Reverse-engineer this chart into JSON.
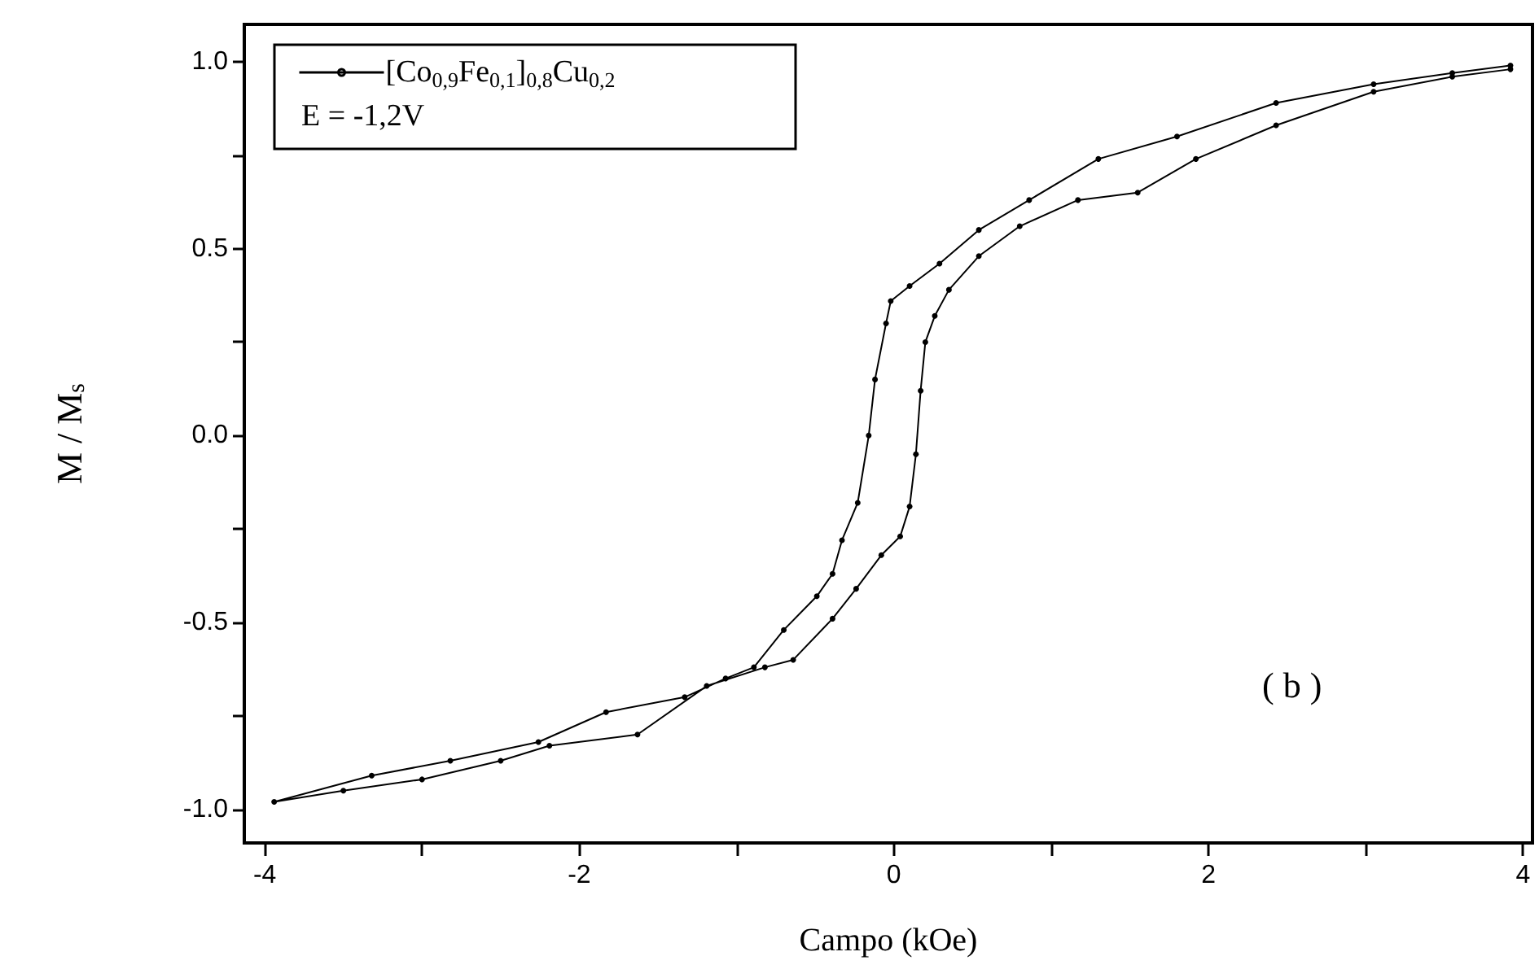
{
  "chart_data": {
    "type": "line",
    "xlabel": "Campo (kOe)",
    "ylabel": "M / M$_{s}$",
    "annotations": [
      "E = -1,2V",
      "( b )"
    ],
    "series": [
      {
        "name": "[Co$_{0,9}$Fe$_{0,1}$]$_{0,8}$Cu$_{0,2}$",
        "color": "#000000",
        "x": [
          3.92,
          3.55,
          3.05,
          2.43,
          1.8,
          1.3,
          0.86,
          0.54,
          0.29,
          0.1,
          -0.02,
          -0.05,
          -0.12,
          -0.16,
          -0.23,
          -0.33,
          -0.39,
          -0.49,
          -0.7,
          -0.89,
          -1.07,
          -1.33,
          -1.83,
          -2.26,
          -2.82,
          -3.32,
          -3.94,
          -3.5,
          -3.0,
          -2.5,
          -2.19,
          -1.63,
          -1.19,
          -0.82,
          -0.64,
          -0.39,
          -0.24,
          -0.08,
          0.04,
          0.1,
          0.14,
          0.17,
          0.2,
          0.26,
          0.35,
          0.54,
          0.8,
          1.17,
          1.55,
          1.92,
          2.43,
          3.05,
          3.55,
          3.92
        ],
        "values": [
          0.99,
          0.97,
          0.94,
          0.89,
          0.8,
          0.74,
          0.63,
          0.55,
          0.46,
          0.4,
          0.36,
          0.3,
          0.15,
          0.0,
          -0.18,
          -0.28,
          -0.37,
          -0.43,
          -0.52,
          -0.62,
          -0.65,
          -0.7,
          -0.74,
          -0.82,
          -0.87,
          -0.91,
          -0.98,
          -0.95,
          -0.92,
          -0.87,
          -0.83,
          -0.8,
          -0.67,
          -0.62,
          -0.6,
          -0.49,
          -0.41,
          -0.32,
          -0.27,
          -0.19,
          -0.05,
          0.12,
          0.25,
          0.32,
          0.39,
          0.48,
          0.56,
          0.63,
          0.65,
          0.74,
          0.83,
          0.92,
          0.96,
          0.98
        ]
      }
    ],
    "xlim": [
      -4.13,
      4.06
    ],
    "xticks": [
      -4,
      {
        "value": -3,
        "label": null
      },
      -2,
      {
        "value": -1,
        "label": null
      },
      0,
      {
        "value": 1,
        "label": null
      },
      2,
      {
        "value": 3,
        "label": null
      },
      4
    ],
    "ylim": [
      -1.09,
      1.1
    ],
    "yticks": [
      {
        "value": -1,
        "label": "-1.0"
      },
      {
        "value": -0.75,
        "label": null
      },
      {
        "value": -0.5,
        "label": "-0.5"
      },
      {
        "value": -0.25,
        "label": null
      },
      {
        "value": 0,
        "label": "0.0"
      },
      {
        "value": 0.25,
        "label": null
      },
      {
        "value": 0.5,
        "label": "0.5"
      },
      {
        "value": 0.75,
        "label": null
      },
      {
        "value": 1,
        "label": "1.0"
      }
    ],
    "grid": false,
    "legend": "top left",
    "marker": "circle",
    "line_style": "solid"
  }
}
